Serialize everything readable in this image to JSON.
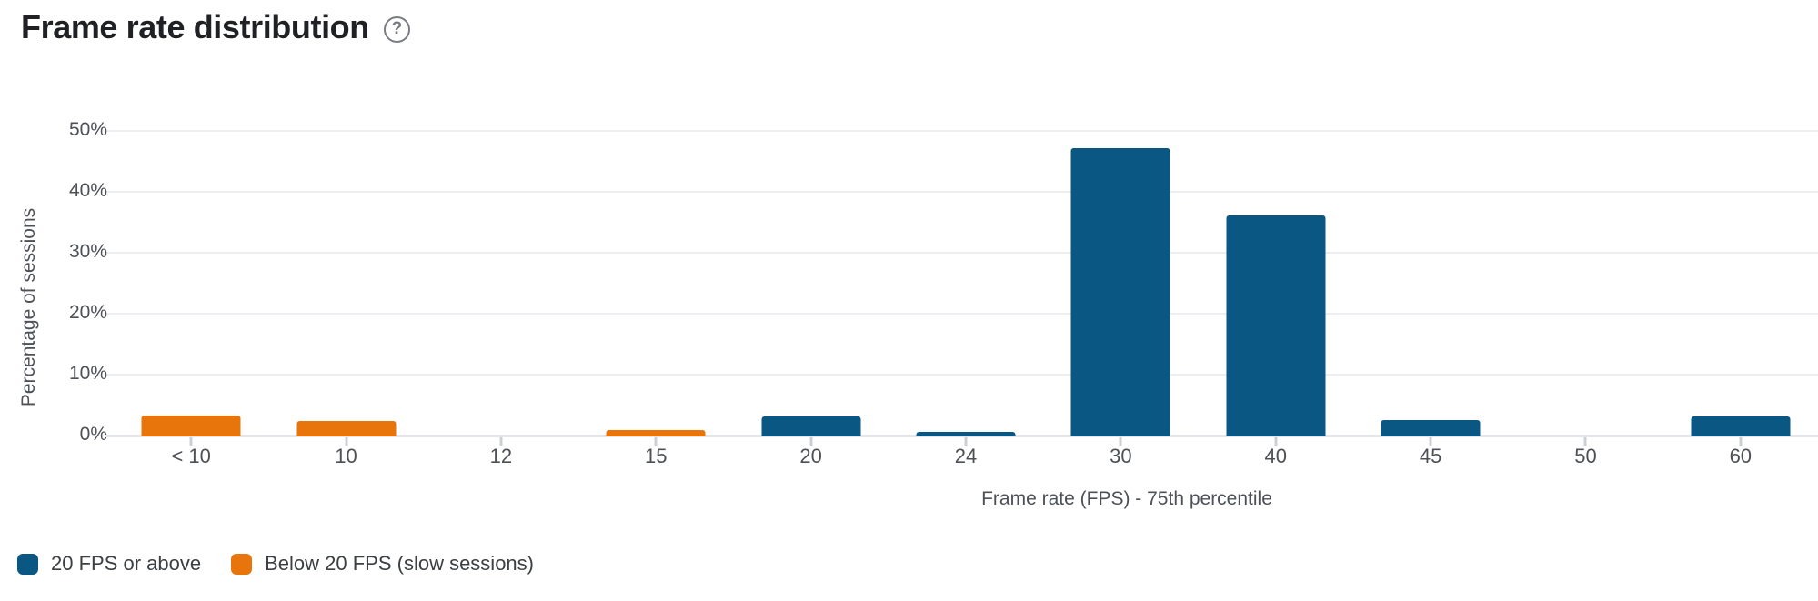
{
  "header": {
    "title": "Frame rate distribution",
    "help_icon_glyph": "?"
  },
  "chart_data": {
    "type": "bar",
    "title": "Frame rate distribution",
    "xlabel": "Frame rate (FPS) - 75th percentile",
    "ylabel": "Percentage of sessions",
    "ylim": [
      0,
      50
    ],
    "ytick_step": 10,
    "ytick_labels": [
      "0%",
      "10%",
      "20%",
      "30%",
      "40%",
      "50%"
    ],
    "grid": true,
    "categories": [
      "< 10",
      "10",
      "12",
      "15",
      "20",
      "24",
      "30",
      "40",
      "45",
      "50",
      "60"
    ],
    "series": [
      {
        "name": "20 FPS or above",
        "color": "#0b5784",
        "values": [
          0,
          0,
          0,
          0,
          3.0,
          0.4,
          47,
          36,
          2.4,
          0,
          3.0
        ]
      },
      {
        "name": "Below 20 FPS (slow sessions)",
        "color": "#e8750c",
        "values": [
          3.2,
          2.2,
          0,
          0.7,
          0,
          0,
          0,
          0,
          0,
          0,
          0
        ]
      }
    ],
    "legend_position": "bottom-left"
  },
  "legend": {
    "items": [
      {
        "label": "20 FPS or above",
        "color": "#0b5784"
      },
      {
        "label": "Below 20 FPS (slow sessions)",
        "color": "#e8750c"
      }
    ]
  }
}
